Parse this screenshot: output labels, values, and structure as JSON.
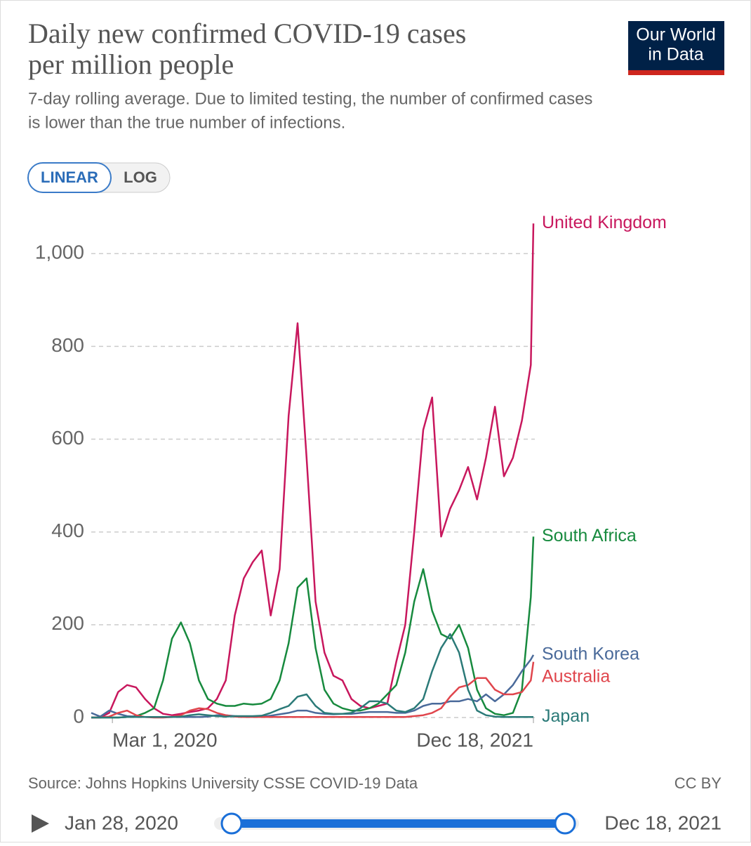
{
  "chart_data": {
    "type": "line",
    "title": [
      "Daily new confirmed COVID-19 cases",
      "per million people"
    ],
    "subtitle": [
      "7-day rolling average. Due to limited testing, the number of confirmed cases",
      "is lower than the true number of infections."
    ],
    "logo": [
      "Our World",
      "in Data"
    ],
    "scale_buttons": [
      "LINEAR",
      "LOG"
    ],
    "source": "Source: Johns Hopkins University CSSE COVID-19 Data",
    "license": "CC BY",
    "timeline": {
      "start": "Jan 28, 2020",
      "end": "Dec 18, 2021"
    },
    "x": [
      "2020-01-28",
      "2020-02-11",
      "2020-02-25",
      "2020-03-10",
      "2020-03-24",
      "2020-04-07",
      "2020-04-21",
      "2020-05-05",
      "2020-05-19",
      "2020-06-02",
      "2020-06-16",
      "2020-06-30",
      "2020-07-14",
      "2020-07-28",
      "2020-08-11",
      "2020-08-25",
      "2020-09-08",
      "2020-09-22",
      "2020-10-06",
      "2020-10-20",
      "2020-11-03",
      "2020-11-17",
      "2020-12-01",
      "2020-12-15",
      "2020-12-29",
      "2021-01-12",
      "2021-01-26",
      "2021-02-09",
      "2021-02-23",
      "2021-03-09",
      "2021-03-23",
      "2021-04-06",
      "2021-04-20",
      "2021-05-04",
      "2021-05-18",
      "2021-06-01",
      "2021-06-15",
      "2021-06-29",
      "2021-07-13",
      "2021-07-27",
      "2021-08-10",
      "2021-08-24",
      "2021-09-07",
      "2021-09-21",
      "2021-10-05",
      "2021-10-19",
      "2021-11-02",
      "2021-11-16",
      "2021-11-30",
      "2021-12-14",
      "2021-12-18"
    ],
    "xlim": [
      "2020-01-28",
      "2021-12-18"
    ],
    "xticks": [
      {
        "value": "2020-03-01",
        "label": "Mar 1, 2020"
      },
      {
        "value": "2021-12-18",
        "label": "Dec 18, 2021"
      }
    ],
    "ylim": [
      0,
      1070
    ],
    "yticks": [
      0,
      200,
      400,
      600,
      800,
      {
        "value": 1000,
        "label": "1,000"
      }
    ],
    "grid": true,
    "series": [
      {
        "name": "United Kingdom",
        "color": "#c8175d",
        "values": [
          0,
          0,
          10,
          55,
          70,
          65,
          40,
          20,
          8,
          5,
          8,
          12,
          15,
          20,
          40,
          80,
          220,
          300,
          335,
          360,
          220,
          320,
          650,
          850,
          560,
          250,
          140,
          90,
          80,
          40,
          25,
          20,
          25,
          30,
          120,
          200,
          400,
          620,
          690,
          390,
          450,
          490,
          540,
          470,
          560,
          670,
          520,
          560,
          640,
          760,
          1065
        ]
      },
      {
        "name": "South Africa",
        "color": "#178a3e",
        "values": [
          0,
          0,
          0,
          0,
          1,
          3,
          10,
          20,
          80,
          170,
          205,
          160,
          80,
          40,
          30,
          25,
          25,
          30,
          28,
          30,
          40,
          80,
          160,
          280,
          300,
          150,
          60,
          30,
          20,
          15,
          15,
          20,
          30,
          50,
          70,
          140,
          250,
          320,
          230,
          180,
          170,
          200,
          150,
          60,
          20,
          8,
          5,
          10,
          60,
          260,
          390
        ]
      },
      {
        "name": "South Korea",
        "color": "#4a6a9a",
        "values": [
          10,
          2,
          15,
          8,
          3,
          2,
          1,
          1,
          1,
          1,
          1,
          1,
          1,
          2,
          5,
          5,
          3,
          2,
          2,
          2,
          4,
          7,
          10,
          15,
          15,
          10,
          8,
          7,
          8,
          8,
          10,
          12,
          12,
          12,
          10,
          10,
          15,
          25,
          30,
          30,
          35,
          35,
          40,
          35,
          50,
          35,
          50,
          70,
          100,
          125,
          135
        ]
      },
      {
        "name": "Australia",
        "color": "#e0454c",
        "values": [
          0,
          0,
          2,
          10,
          15,
          5,
          1,
          0,
          0,
          1,
          5,
          15,
          20,
          18,
          10,
          5,
          2,
          1,
          1,
          1,
          1,
          1,
          1,
          1,
          1,
          1,
          1,
          1,
          1,
          1,
          1,
          1,
          1,
          1,
          1,
          1,
          3,
          5,
          10,
          20,
          45,
          65,
          70,
          85,
          85,
          60,
          50,
          50,
          55,
          80,
          120
        ]
      },
      {
        "name": "Japan",
        "color": "#2b7a78",
        "values": [
          0,
          0,
          0,
          0,
          1,
          1,
          1,
          1,
          1,
          1,
          2,
          5,
          7,
          5,
          3,
          2,
          3,
          3,
          3,
          4,
          10,
          18,
          25,
          45,
          50,
          25,
          10,
          8,
          8,
          10,
          20,
          35,
          35,
          30,
          15,
          12,
          20,
          40,
          100,
          150,
          180,
          140,
          60,
          15,
          5,
          2,
          1,
          1,
          1,
          1,
          1
        ]
      }
    ]
  }
}
